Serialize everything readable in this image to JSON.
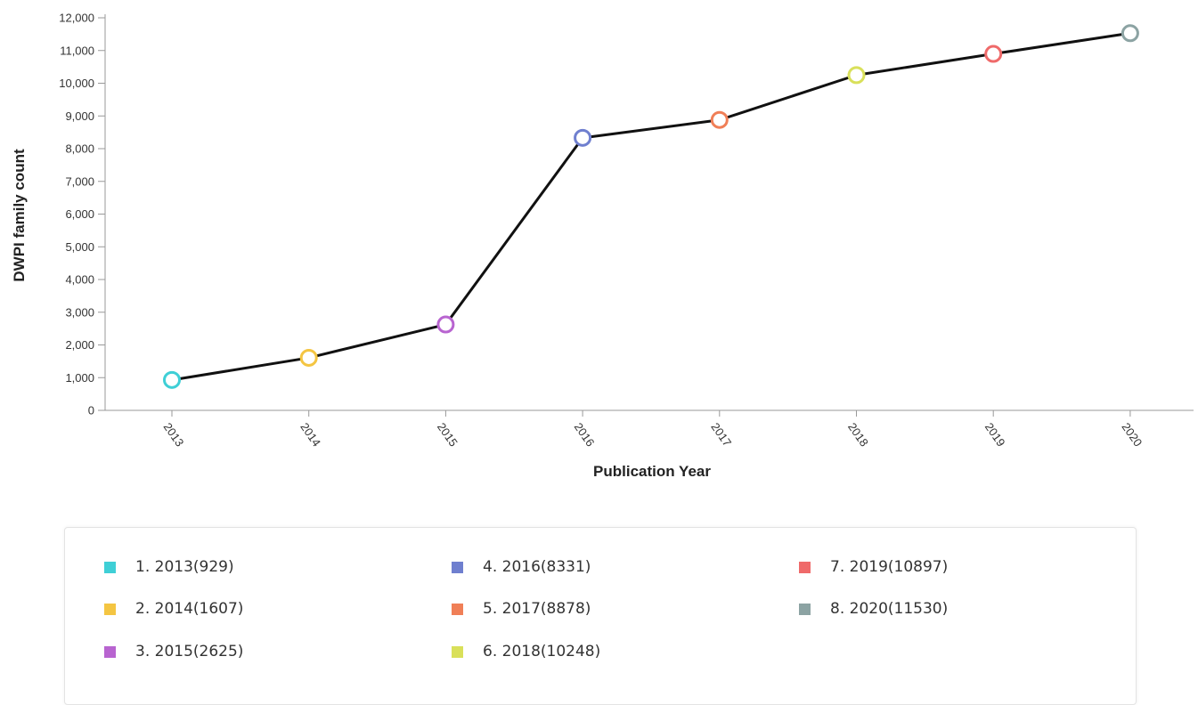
{
  "chart_data": {
    "type": "line",
    "x": [
      "2013",
      "2014",
      "2015",
      "2016",
      "2017",
      "2018",
      "2019",
      "2020"
    ],
    "values": [
      929,
      1607,
      2625,
      8331,
      8878,
      10248,
      10897,
      11530
    ],
    "point_colors": [
      "#3fcfd6",
      "#f4c542",
      "#b864d0",
      "#6f7fcf",
      "#f07f57",
      "#d9e05a",
      "#ef6a6a",
      "#8ca3a3"
    ],
    "line_color": "#111111",
    "xlabel": "Publication Year",
    "ylabel": "DWPI family count",
    "ylim": [
      0,
      12000
    ],
    "yticks": [
      0,
      1000,
      2000,
      3000,
      4000,
      5000,
      6000,
      7000,
      8000,
      9000,
      10000,
      11000,
      12000
    ],
    "ytick_labels": [
      "0",
      "1,000",
      "2,000",
      "3,000",
      "4,000",
      "5,000",
      "6,000",
      "7,000",
      "8,000",
      "9,000",
      "10,000",
      "11,000",
      "12,000"
    ],
    "grid": false,
    "legend_position": "bottom",
    "legend": [
      {
        "label": "1. 2013(929)",
        "color": "#3fcfd6"
      },
      {
        "label": "2. 2014(1607)",
        "color": "#f4c542"
      },
      {
        "label": "3. 2015(2625)",
        "color": "#b864d0"
      },
      {
        "label": "4. 2016(8331)",
        "color": "#6f7fcf"
      },
      {
        "label": "5. 2017(8878)",
        "color": "#f07f57"
      },
      {
        "label": "6. 2018(10248)",
        "color": "#d9e05a"
      },
      {
        "label": "7. 2019(10897)",
        "color": "#ef6a6a"
      },
      {
        "label": "8. 2020(11530)",
        "color": "#8ca3a3"
      }
    ]
  }
}
